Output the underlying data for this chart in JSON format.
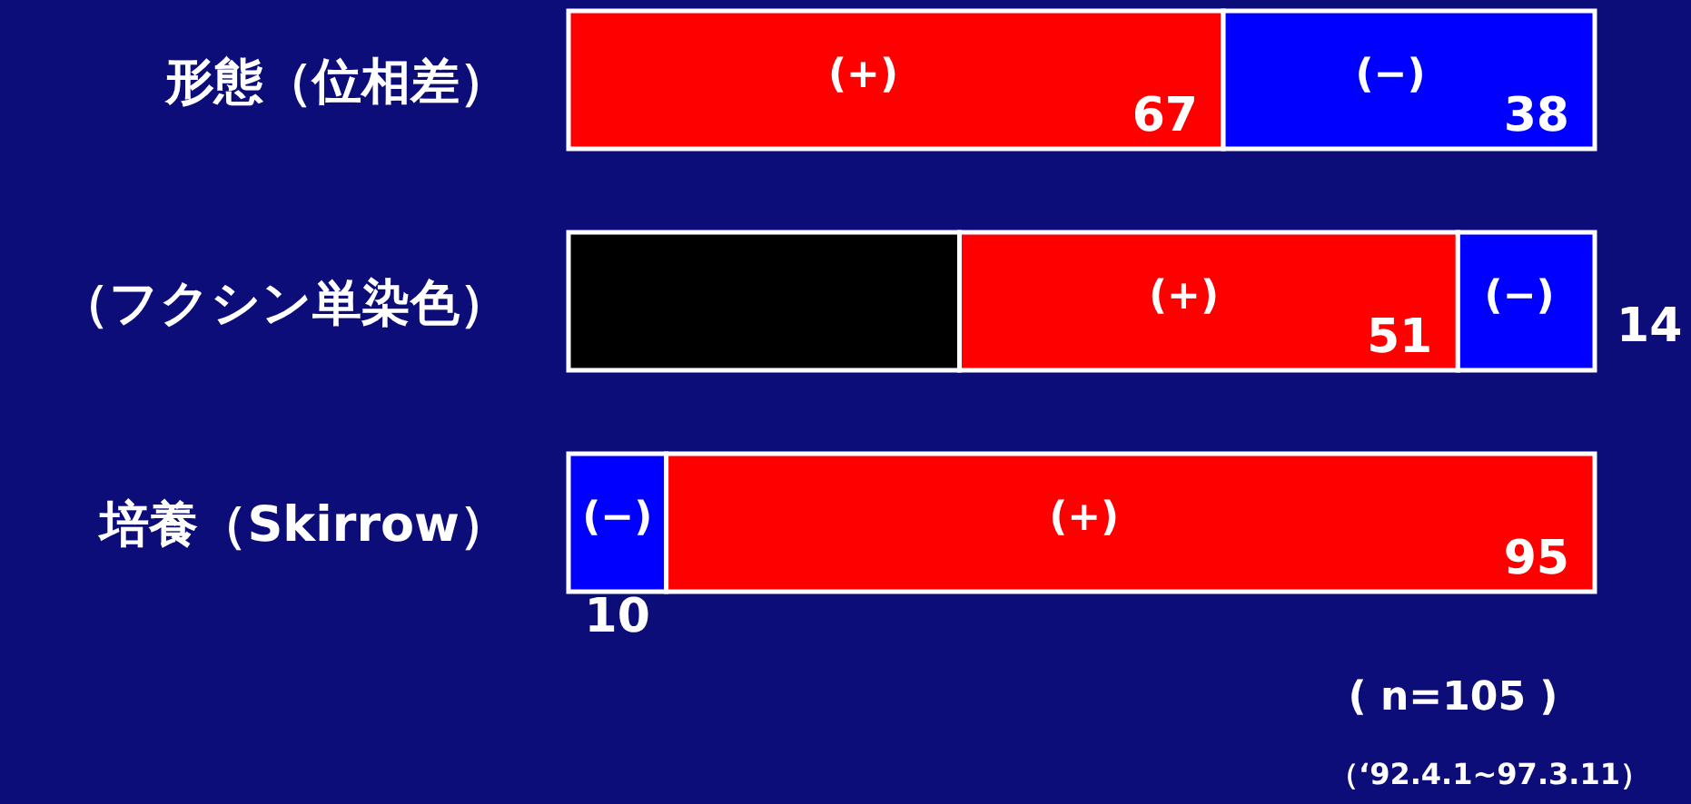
{
  "chart_data": {
    "type": "bar",
    "orientation": "horizontal",
    "stacked": true,
    "categories": [
      "形態（位相差）",
      "（フクシン単染色）",
      "培養（Skirrow）"
    ],
    "series": [
      {
        "color": "#000000",
        "values": [
          null,
          40,
          null
        ],
        "value_labels": [
          null,
          null,
          null
        ]
      },
      {
        "name": "(−)",
        "color": "#0000ff",
        "values": [
          null,
          null,
          10
        ],
        "value_labels": [
          null,
          null,
          "10"
        ]
      },
      {
        "name": "(+)",
        "color": "#ff0000",
        "values": [
          67,
          51,
          95
        ],
        "value_labels": [
          "67",
          "51",
          "95"
        ]
      },
      {
        "name": "(−)",
        "color": "#0000ff",
        "values": [
          38,
          14,
          null
        ],
        "value_labels": [
          "38",
          "14",
          null
        ]
      }
    ],
    "xlim": [
      0,
      105
    ],
    "annotations": [
      "( n=105 )",
      "（‘92.4.1~97.3.11）"
    ]
  }
}
